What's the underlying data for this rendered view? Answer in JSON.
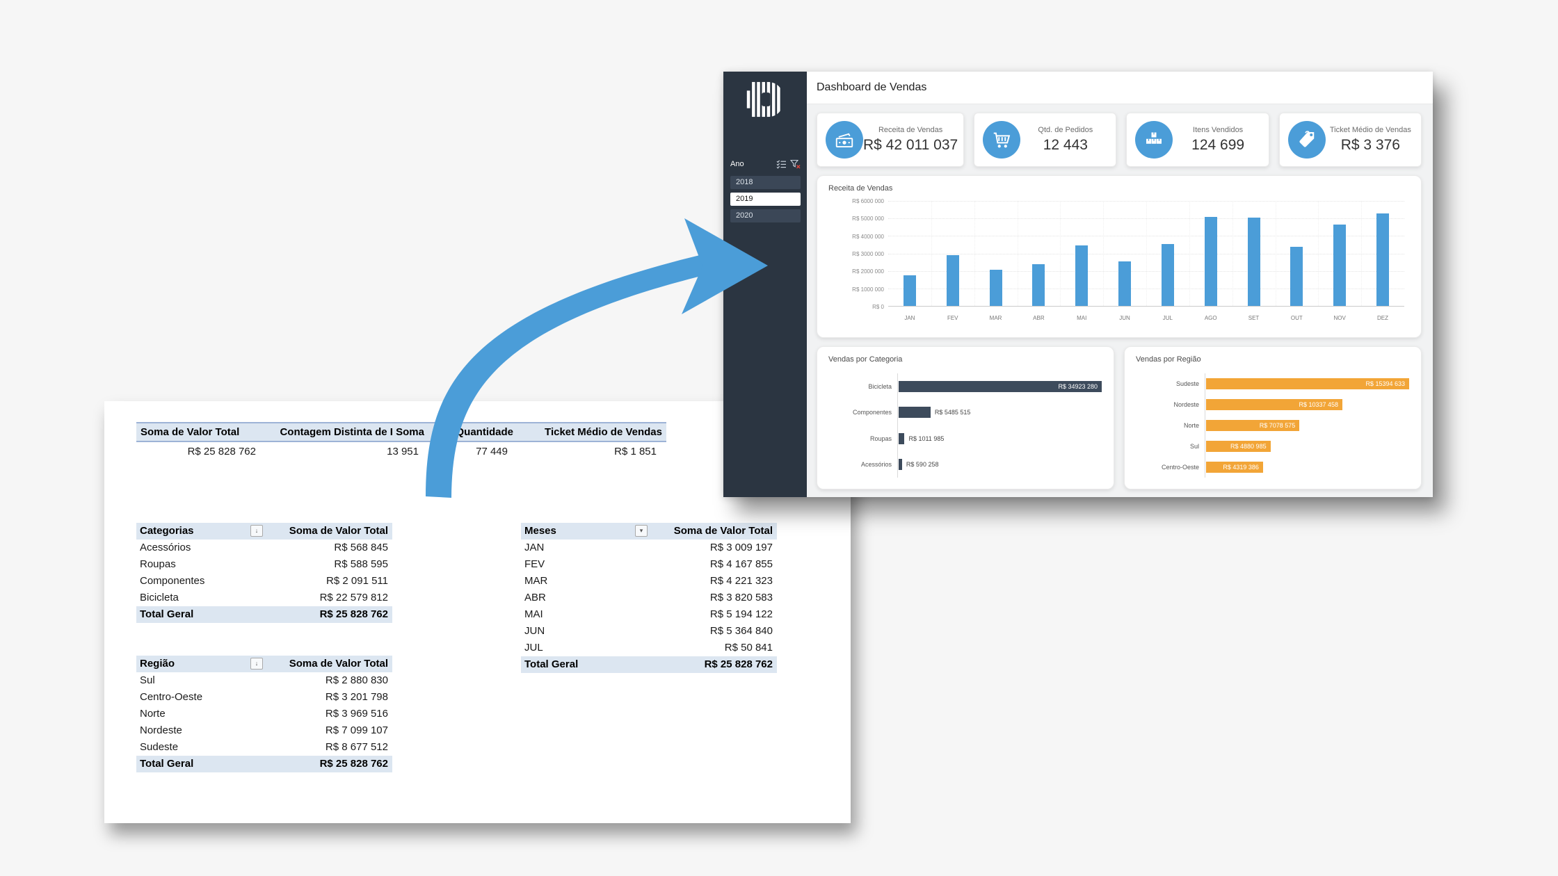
{
  "colors": {
    "accent_blue": "#4B9DD8",
    "orange": "#F2A537",
    "slate_bar": "#3D4B5C",
    "sidebar_bg": "#2B3541",
    "pivot_band": "#DCE6F1",
    "pivot_border": "#9DB3D6"
  },
  "sheet": {
    "summary": {
      "headers": [
        "Soma de Valor Total",
        "Contagem Distinta de I Soma",
        "Quantidade",
        "Ticket Médio de Vendas"
      ],
      "values": [
        "R$ 25 828 762",
        "13 951",
        "77 449",
        "R$ 1 851"
      ]
    },
    "pivots": [
      {
        "name": "Categorias",
        "filter_icon": "sort-descending-icon",
        "value_header": "Soma de Valor Total",
        "rows": [
          [
            "Acessórios",
            "R$ 568 845"
          ],
          [
            "Roupas",
            "R$ 588 595"
          ],
          [
            "Componentes",
            "R$ 2 091 511"
          ],
          [
            "Bicicleta",
            "R$ 22 579 812"
          ]
        ],
        "total": [
          "Total Geral",
          "R$ 25 828 762"
        ]
      },
      {
        "name": "Região",
        "filter_icon": "sort-descending-icon",
        "value_header": "Soma de Valor Total",
        "rows": [
          [
            "Sul",
            "R$ 2 880 830"
          ],
          [
            "Centro-Oeste",
            "R$ 3 201 798"
          ],
          [
            "Norte",
            "R$ 3 969 516"
          ],
          [
            "Nordeste",
            "R$ 7 099 107"
          ],
          [
            "Sudeste",
            "R$ 8 677 512"
          ]
        ],
        "total": [
          "Total Geral",
          "R$ 25 828 762"
        ]
      },
      {
        "name": "Meses",
        "filter_icon": "dropdown-icon",
        "value_header": "Soma de Valor Total",
        "rows": [
          [
            "JAN",
            "R$ 3 009 197"
          ],
          [
            "FEV",
            "R$ 4 167 855"
          ],
          [
            "MAR",
            "R$ 4 221 323"
          ],
          [
            "ABR",
            "R$ 3 820 583"
          ],
          [
            "MAI",
            "R$ 5 194 122"
          ],
          [
            "JUN",
            "R$ 5 364 840"
          ],
          [
            "JUL",
            "R$ 50 841"
          ]
        ],
        "total": [
          "Total Geral",
          "R$ 25 828 762"
        ]
      }
    ]
  },
  "dashboard": {
    "logo": "striped-d-logo",
    "title": "Dashboard de Vendas",
    "slicer": {
      "label": "Ano",
      "multi_select_icon": "multiselect-icon",
      "clear_filter_icon": "clear-filter-icon",
      "options": [
        {
          "label": "2018",
          "selected": false
        },
        {
          "label": "2019",
          "selected": true
        },
        {
          "label": "2020",
          "selected": false
        }
      ]
    },
    "kpis": [
      {
        "label": "Receita de Vendas",
        "value": "R$ 42 011 037",
        "icon": "banknote-icon"
      },
      {
        "label": "Qtd. de Pedidos",
        "value": "12 443",
        "icon": "cart-icon"
      },
      {
        "label": "Itens Vendidos",
        "value": "124 699",
        "icon": "boxes-icon"
      },
      {
        "label": "Ticket Médio de Vendas",
        "value": "R$ 3 376",
        "icon": "tag-icon"
      }
    ]
  },
  "chart_data": [
    {
      "type": "bar",
      "title": "Receita de Vendas",
      "categories": [
        "JAN",
        "FEV",
        "MAR",
        "ABR",
        "MAI",
        "JUN",
        "JUL",
        "AGO",
        "SET",
        "OUT",
        "NOV",
        "DEZ"
      ],
      "values": [
        1750000,
        2900000,
        2050000,
        2380000,
        3450000,
        2550000,
        3550000,
        5080000,
        5050000,
        3380000,
        4650000,
        5270000
      ],
      "ylim": [
        0,
        6000000
      ],
      "ytick_labels": [
        "R$ 6000 000",
        "R$ 5000 000",
        "R$ 4000 000",
        "R$ 3000 000",
        "R$ 2000 000",
        "R$ 1000 000",
        "R$ 0"
      ],
      "grid": "dotted",
      "bar_color": "#4B9DD8"
    },
    {
      "type": "bar-horizontal",
      "title": "Vendas por Categoria",
      "categories": [
        "Bicicleta",
        "Componentes",
        "Roupas",
        "Acessórios"
      ],
      "values": [
        34923280,
        5485515,
        1011985,
        590258
      ],
      "value_labels": [
        "R$ 34923 280",
        "R$ 5485 515",
        "R$ 1011 985",
        "R$ 590 258"
      ],
      "bar_color": "#3D4B5C"
    },
    {
      "type": "bar-horizontal",
      "title": "Vendas por Região",
      "categories": [
        "Sudeste",
        "Nordeste",
        "Norte",
        "Sul",
        "Centro-Oeste"
      ],
      "values": [
        15394633,
        10337458,
        7078575,
        4880985,
        4319386
      ],
      "value_labels": [
        "R$ 15394 633",
        "R$ 10337 458",
        "R$ 7078 575",
        "R$ 4880 985",
        "R$ 4319 386"
      ],
      "bar_color": "#F2A537"
    }
  ]
}
